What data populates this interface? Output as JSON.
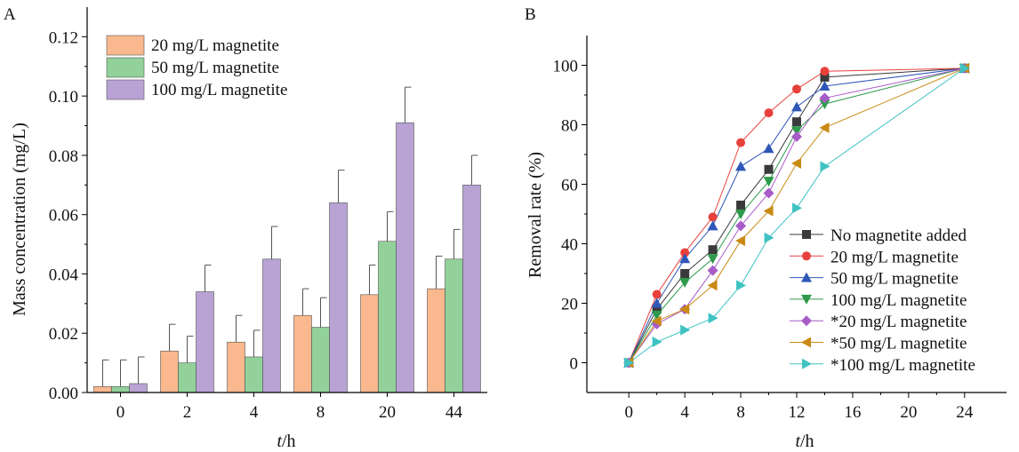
{
  "chart_data": [
    {
      "panel_label": "A",
      "type": "bar",
      "xlabel_italic": "t",
      "xlabel_rest": "/h",
      "ylabel": "Mass concentration (mg/L)",
      "ylim": [
        0,
        0.13
      ],
      "yticks": [
        "0.00",
        "0.02",
        "0.04",
        "0.06",
        "0.08",
        "0.10",
        "0.12"
      ],
      "categories": [
        "0",
        "2",
        "4",
        "8",
        "20",
        "44"
      ],
      "legend_position": "top-left",
      "series": [
        {
          "name": "20 mg/L magnetite",
          "color": "#f9b88e",
          "values": [
            0.002,
            0.014,
            0.017,
            0.026,
            0.033,
            0.035
          ],
          "errors": [
            0.009,
            0.009,
            0.009,
            0.009,
            0.01,
            0.011
          ]
        },
        {
          "name": "50 mg/L magnetite",
          "color": "#92d19a",
          "values": [
            0.002,
            0.01,
            0.012,
            0.022,
            0.051,
            0.045
          ],
          "errors": [
            0.009,
            0.009,
            0.009,
            0.01,
            0.01,
            0.01
          ]
        },
        {
          "name": "100 mg/L magnetite",
          "color": "#b8a3d4",
          "values": [
            0.003,
            0.034,
            0.045,
            0.064,
            0.091,
            0.07
          ],
          "errors": [
            0.009,
            0.009,
            0.011,
            0.011,
            0.012,
            0.01
          ]
        }
      ]
    },
    {
      "panel_label": "B",
      "type": "line",
      "xlabel_italic": "t",
      "xlabel_rest": "/h",
      "ylabel": "Removal rate (%)",
      "xlim": [
        -3,
        27
      ],
      "ylim": [
        -10,
        110
      ],
      "xticks": [
        0,
        4,
        8,
        12,
        16,
        20,
        24
      ],
      "yticks": [
        0,
        20,
        40,
        60,
        80,
        100
      ],
      "legend_position": "bottom-right",
      "series": [
        {
          "name": "No magnetite added",
          "color": "#3a3a3a",
          "marker": "square",
          "x": [
            0,
            2,
            4,
            6,
            8,
            10,
            12,
            14,
            24
          ],
          "y": [
            0,
            18,
            30,
            38,
            53,
            65,
            81,
            96,
            99
          ]
        },
        {
          "name": "20 mg/L magnetite",
          "color": "#e8413b",
          "marker": "circle",
          "x": [
            0,
            2,
            4,
            6,
            8,
            10,
            12,
            14,
            24
          ],
          "y": [
            0,
            23,
            37,
            49,
            74,
            84,
            92,
            98,
            99
          ]
        },
        {
          "name": "50 mg/L magnetite",
          "color": "#2f57b8",
          "marker": "triangle-up",
          "x": [
            0,
            2,
            4,
            6,
            8,
            10,
            12,
            14,
            24
          ],
          "y": [
            0,
            20,
            35,
            46,
            66,
            72,
            86,
            93,
            99
          ]
        },
        {
          "name": "100 mg/L magnetite",
          "color": "#2e9a4c",
          "marker": "triangle-down",
          "x": [
            0,
            2,
            4,
            6,
            8,
            10,
            12,
            14,
            24
          ],
          "y": [
            0,
            16,
            27,
            35,
            50,
            61,
            78,
            87,
            99
          ]
        },
        {
          "name": "*20 mg/L magnetite",
          "color": "#a85cc8",
          "marker": "diamond",
          "x": [
            0,
            2,
            4,
            6,
            8,
            10,
            12,
            14,
            24
          ],
          "y": [
            0,
            13,
            18,
            31,
            46,
            57,
            76,
            89,
            99
          ]
        },
        {
          "name": "*50 mg/L magnetite",
          "color": "#c98a14",
          "marker": "triangle-left",
          "x": [
            0,
            2,
            4,
            6,
            8,
            10,
            12,
            14,
            24
          ],
          "y": [
            0,
            14,
            18,
            26,
            41,
            51,
            67,
            79,
            99
          ]
        },
        {
          "name": "*100 mg/L magnetite",
          "color": "#3fc2c2",
          "marker": "triangle-right",
          "x": [
            0,
            2,
            4,
            6,
            8,
            10,
            12,
            14,
            24
          ],
          "y": [
            0,
            7,
            11,
            15,
            26,
            42,
            52,
            66,
            99
          ]
        }
      ]
    }
  ]
}
